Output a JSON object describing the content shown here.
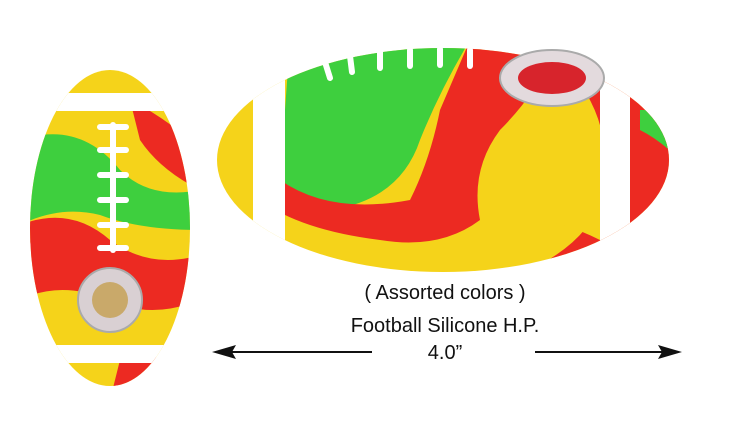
{
  "caption": {
    "note": "( Assorted colors )",
    "name": "Football Silicone H.P.",
    "size": "4.0”"
  }
}
